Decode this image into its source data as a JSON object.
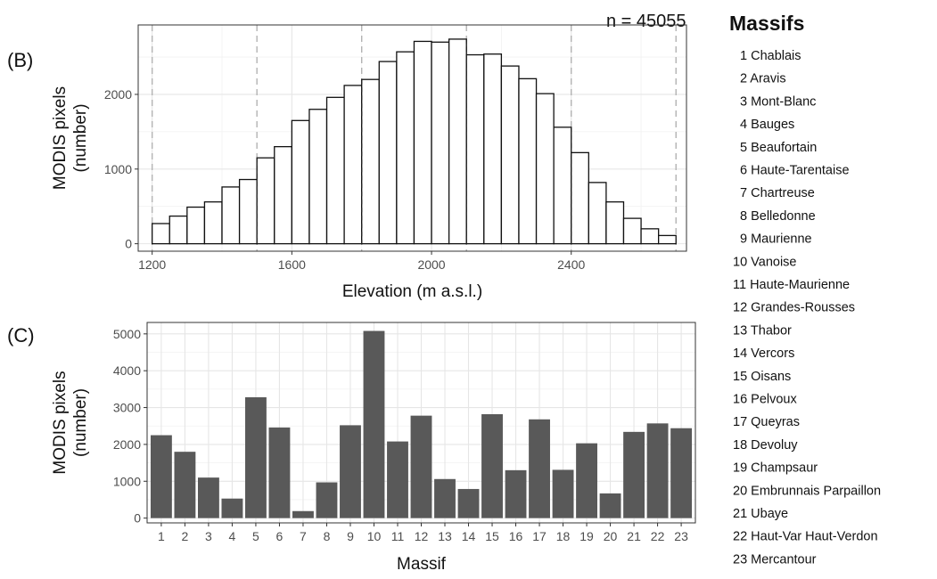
{
  "annotation": {
    "n_label": "n = 45055"
  },
  "legend": {
    "title": "Massifs",
    "items": [
      "1 Chablais",
      "2 Aravis",
      "3 Mont-Blanc",
      "4 Bauges",
      "5 Beaufortain",
      "6 Haute-Tarentaise",
      "7 Chartreuse",
      "8 Belledonne",
      "9 Maurienne",
      "10 Vanoise",
      "11 Haute-Maurienne",
      "12 Grandes-Rousses",
      "13 Thabor",
      "14 Vercors",
      "15 Oisans",
      "16 Pelvoux",
      "17 Queyras",
      "18 Devoluy",
      "19 Champsaur",
      "20 Embrunnais Parpaillon",
      "21 Ubaye",
      "22 Haut-Var Haut-Verdon",
      "23 Mercantour"
    ]
  },
  "chart_data": [
    {
      "panel_label": "(B)",
      "type": "bar",
      "style": "histogram-outline",
      "xlabel": "Elevation (m a.s.l.)",
      "ylabel_lines": [
        "MODIS pixels",
        "(number)"
      ],
      "bin_width": 50,
      "bins_start": [
        1200,
        1250,
        1300,
        1350,
        1400,
        1450,
        1500,
        1550,
        1600,
        1650,
        1700,
        1750,
        1800,
        1850,
        1900,
        1950,
        2000,
        2050,
        2100,
        2150,
        2200,
        2250,
        2300,
        2350,
        2400,
        2450,
        2500,
        2550,
        2600,
        2650
      ],
      "values": [
        270,
        370,
        490,
        560,
        760,
        860,
        1150,
        1300,
        1650,
        1800,
        1960,
        2120,
        2200,
        2440,
        2570,
        2710,
        2700,
        2740,
        2530,
        2540,
        2380,
        2210,
        2010,
        1560,
        1220,
        820,
        560,
        340,
        200,
        110
      ],
      "xlim": [
        1160,
        2730
      ],
      "ylim": [
        -100,
        2930
      ],
      "xticks": [
        1200,
        1600,
        2000,
        2400
      ],
      "xtick_labels": [
        "1200",
        "1600",
        "2000",
        "2400"
      ],
      "yticks": [
        0,
        1000,
        2000
      ],
      "ytick_labels": [
        "0",
        "1000",
        "2000"
      ],
      "vlines_light": [
        1200,
        1500,
        1800,
        2100,
        2400,
        2700
      ],
      "vlines_dark": [
        1500,
        1800,
        2100,
        2400
      ],
      "grid": true
    },
    {
      "panel_label": "(C)",
      "type": "bar",
      "style": "filled",
      "xlabel": "Massif",
      "ylabel_lines": [
        "MODIS pixels",
        "(number)"
      ],
      "categories": [
        "1",
        "2",
        "3",
        "4",
        "5",
        "6",
        "7",
        "8",
        "9",
        "10",
        "11",
        "12",
        "13",
        "14",
        "15",
        "16",
        "17",
        "18",
        "19",
        "20",
        "21",
        "22",
        "23"
      ],
      "values": [
        2250,
        1800,
        1100,
        530,
        3280,
        2460,
        190,
        970,
        2520,
        5080,
        2080,
        2780,
        1060,
        790,
        2820,
        1300,
        2680,
        1310,
        2030,
        670,
        2340,
        2570,
        2440
      ],
      "ylim": [
        -130,
        5310
      ],
      "yticks": [
        0,
        1000,
        2000,
        3000,
        4000,
        5000
      ],
      "ytick_labels": [
        "0",
        "1000",
        "2000",
        "3000",
        "4000",
        "5000"
      ],
      "bar_color": "#595959",
      "grid": true
    }
  ]
}
